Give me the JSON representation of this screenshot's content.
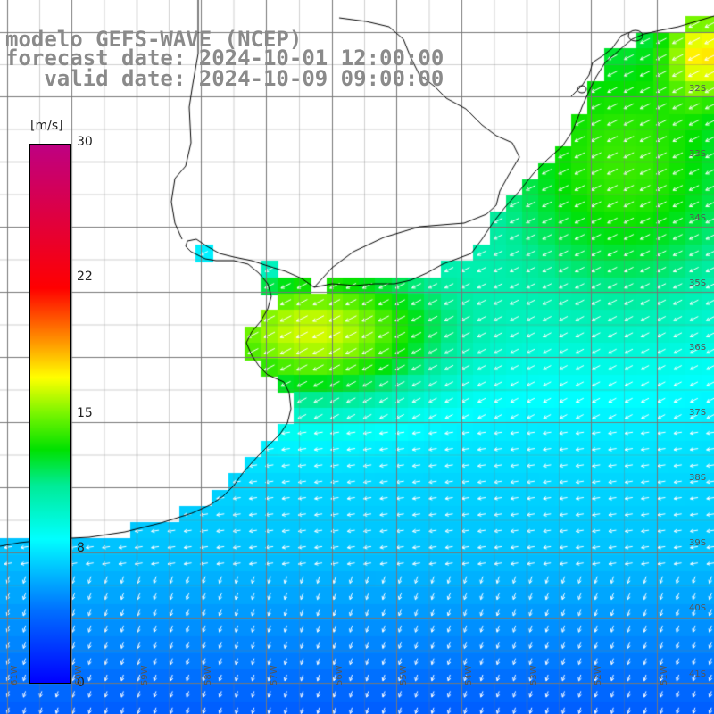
{
  "title": {
    "line1": "modelo GEFS-WAVE (NCEP)",
    "line2": "forecast date: 2024-10-01 12:00:00",
    "line3": "   valid date: 2024-10-09 09:00:00"
  },
  "colorbar": {
    "unit": "[m/s]",
    "ticks": [
      {
        "value": 30,
        "label": "30"
      },
      {
        "value": 22,
        "label": "22"
      },
      {
        "value": 15,
        "label": "15"
      },
      {
        "value": 8,
        "label": "8"
      },
      {
        "value": 0,
        "label": "0"
      }
    ],
    "range": [
      0,
      30
    ],
    "colors": [
      "#0000ff",
      "#00a0ff",
      "#00ffff",
      "#00e080",
      "#00e000",
      "#80ff00",
      "#ffff00",
      "#ff8000",
      "#ff0000",
      "#c00080"
    ]
  },
  "lat_labels": [
    "32S",
    "33S",
    "34S",
    "35S",
    "36S",
    "37S",
    "38S",
    "39S",
    "40S",
    "41S"
  ],
  "lon_labels": [
    "61W",
    "60W",
    "59W",
    "58W",
    "57W",
    "56W",
    "55W",
    "54W",
    "53W",
    "52W",
    "51W"
  ],
  "colors": {
    "land": "#ffffff",
    "coast": "#000000",
    "grid": "#777777",
    "arrow": "#ffffff",
    "title": "#8a8a8a"
  },
  "field": {
    "variable": "wind speed",
    "unit": "m/s",
    "description_levels": {
      "open_ocean_south": 5,
      "river_plate_estuary": 16,
      "north_coast": 13,
      "northeast_corner": 17
    }
  }
}
